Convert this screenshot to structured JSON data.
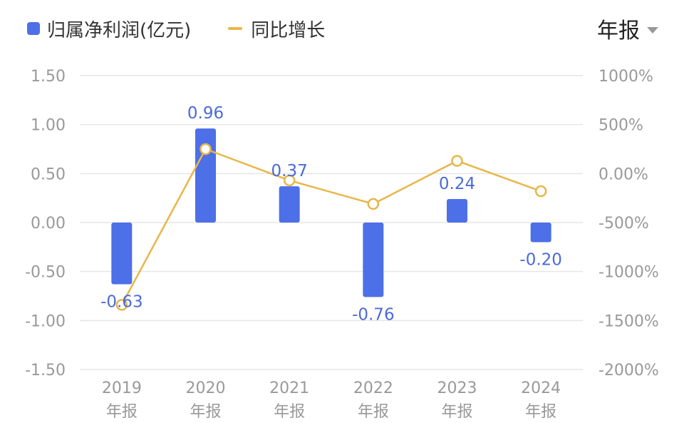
{
  "legend": {
    "bar_label": "归属净利润(亿元)",
    "line_label": "同比增长"
  },
  "period_selector": {
    "label": "年报"
  },
  "colors": {
    "bar": "#4d6fe8",
    "line": "#e8b649",
    "grid": "#e6e6e6",
    "tick": "#999999",
    "data_label": "#4b6bd6"
  },
  "chart_data": {
    "type": "bar",
    "categories": [
      "2019",
      "2020",
      "2021",
      "2022",
      "2023",
      "2024"
    ],
    "category_suffix": "年报",
    "series": [
      {
        "name": "归属净利润(亿元)",
        "type": "bar",
        "axis": "left",
        "values": [
          -0.63,
          0.96,
          0.37,
          -0.76,
          0.24,
          -0.2
        ],
        "labels": [
          "-0.63",
          "0.96",
          "0.37",
          "-0.76",
          "0.24",
          "-0.20"
        ]
      },
      {
        "name": "同比增长",
        "type": "line",
        "axis": "right",
        "values": [
          -1340,
          250,
          -70,
          -310,
          130,
          -180
        ]
      }
    ],
    "y_left": {
      "ticks": [
        "1.50",
        "1.00",
        "0.50",
        "0.00",
        "-0.50",
        "-1.00",
        "-1.50"
      ],
      "range": [
        -1.5,
        1.5
      ]
    },
    "y_right": {
      "ticks": [
        "1000%",
        "500%",
        "0.00%",
        "-500%",
        "-1000%",
        "-1500%",
        "-2000%"
      ],
      "range": [
        -2000,
        1000
      ]
    },
    "grid": true,
    "legend_position": "top-left"
  }
}
